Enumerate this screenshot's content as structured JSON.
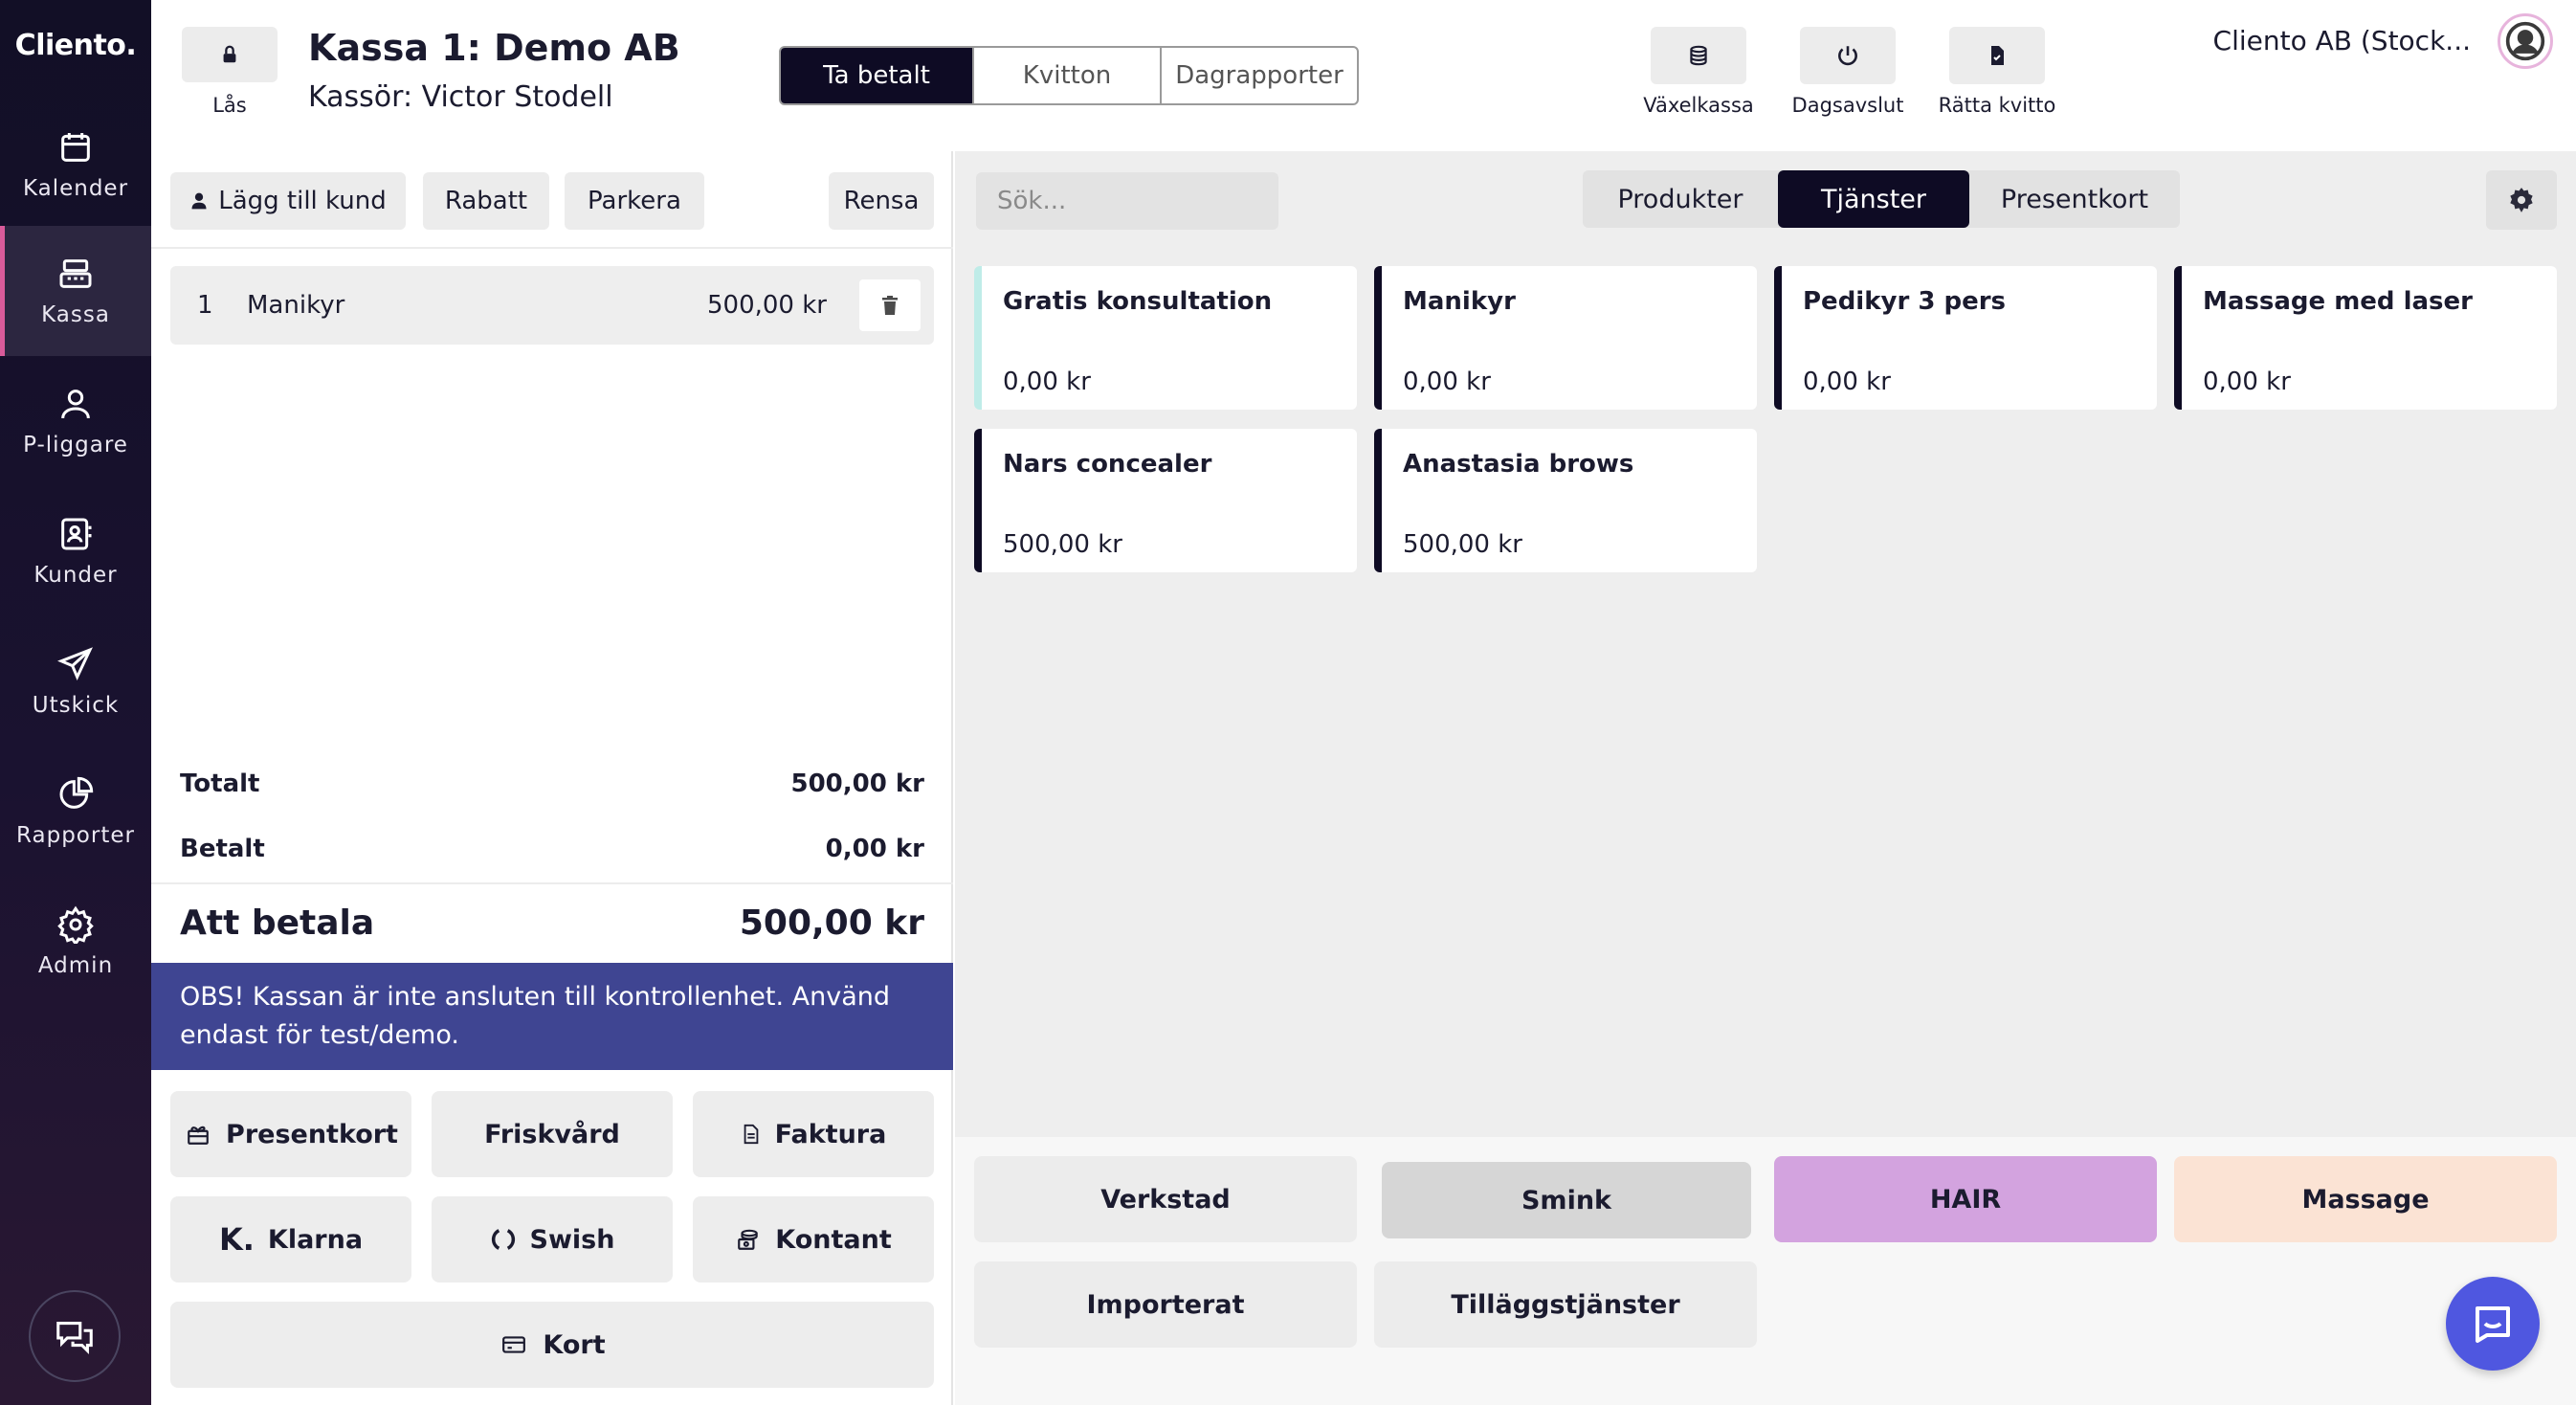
{
  "nav": {
    "logo": "Cliento.",
    "items": [
      {
        "label": "Kalender",
        "icon": "calendar-icon"
      },
      {
        "label": "Kassa",
        "icon": "cash-register-icon",
        "active": true
      },
      {
        "label": "P-liggare",
        "icon": "person-icon"
      },
      {
        "label": "Kunder",
        "icon": "contact-card-icon"
      },
      {
        "label": "Utskick",
        "icon": "paper-plane-icon"
      },
      {
        "label": "Rapporter",
        "icon": "pie-chart-icon"
      },
      {
        "label": "Admin",
        "icon": "gear-icon"
      }
    ],
    "chat_icon": "chat-bubbles-icon"
  },
  "header": {
    "lock_label": "Lås",
    "title": "Kassa 1: Demo AB",
    "cashier": "Kassör: Victor Stodell",
    "tabs": [
      "Ta betalt",
      "Kvitton",
      "Dagrapporter"
    ],
    "active_tab": "Ta betalt",
    "actions": [
      {
        "label": "Växelkassa",
        "icon": "coins-icon"
      },
      {
        "label": "Dagsavslut",
        "icon": "power-icon"
      },
      {
        "label": "Rätta kvitto",
        "icon": "receipt-check-icon"
      }
    ],
    "company": "Cliento AB (Stock..."
  },
  "cart": {
    "buttons": {
      "add_customer": "Lägg till kund",
      "discount": "Rabatt",
      "park": "Parkera",
      "clear": "Rensa"
    },
    "items": [
      {
        "qty": "1",
        "name": "Manikyr",
        "price": "500,00 kr"
      }
    ],
    "total_label": "Totalt",
    "total_value": "500,00 kr",
    "paid_label": "Betalt",
    "paid_value": "0,00 kr",
    "due_label": "Att betala",
    "due_value": "500,00 kr",
    "warning": "OBS! Kassan är inte ansluten till kontrollenhet. Använd endast för test/demo.",
    "payment_methods": {
      "giftcard": "Presentkort",
      "wellness": "Friskvård",
      "invoice": "Faktura",
      "klarna": "Klarna",
      "swish": "Swish",
      "cash": "Kontant",
      "card": "Kort"
    }
  },
  "catalog": {
    "search_placeholder": "Sök...",
    "tabs": [
      "Produkter",
      "Tjänster",
      "Presentkort"
    ],
    "active_tab": "Tjänster",
    "services": [
      {
        "name": "Gratis konsultation",
        "price": "0,00 kr",
        "color": "#bfece8"
      },
      {
        "name": "Manikyr",
        "price": "0,00 kr",
        "color": "#0e0b24"
      },
      {
        "name": "Pedikyr 3 pers",
        "price": "0,00 kr",
        "color": "#0e0b24"
      },
      {
        "name": "Massage med laser",
        "price": "0,00 kr",
        "color": "#0e0b24"
      },
      {
        "name": "Nars concealer",
        "price": "500,00 kr",
        "color": "#0e0b24"
      },
      {
        "name": "Anastasia brows",
        "price": "500,00 kr",
        "color": "#0e0b24"
      }
    ],
    "categories": [
      {
        "name": "Verkstad",
        "color": "#ececec"
      },
      {
        "name": "Smink",
        "color": "#d6d6d6"
      },
      {
        "name": "HAIR",
        "color": "#d3a3df"
      },
      {
        "name": "Massage",
        "color": "#fbe3d4"
      },
      {
        "name": "Importerat",
        "color": "#ececec"
      },
      {
        "name": "Tilläggstjänster",
        "color": "#ececec"
      }
    ]
  },
  "colors": {
    "primary_dark": "#0e0b24",
    "warning_bg": "#3f4592",
    "nav_accent": "#d95b9a",
    "messenger": "#4f57e0"
  }
}
